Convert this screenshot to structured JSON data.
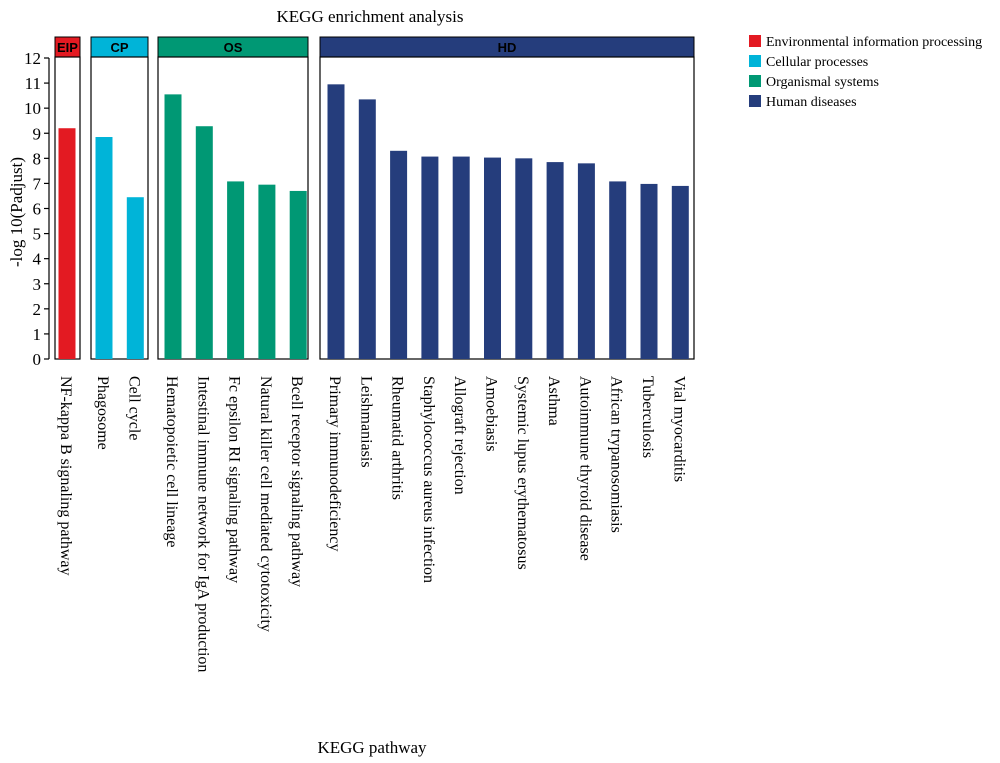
{
  "chart_data": {
    "type": "bar",
    "title": "KEGG enrichment analysis",
    "xlabel": "KEGG pathway",
    "ylabel": "-log 10(Padjust)",
    "ylim": [
      0,
      12
    ],
    "yticks": [
      0,
      1,
      2,
      3,
      4,
      5,
      6,
      7,
      8,
      9,
      10,
      11,
      12
    ],
    "grid": false,
    "legend_position": "top-right",
    "groups": [
      {
        "abbr": "EIP",
        "name": "Environmental information processing",
        "color": "#e31a22",
        "categories": [
          "NF-kappa B signaling pathway"
        ],
        "values": [
          9.2
        ]
      },
      {
        "abbr": "CP",
        "name": "Cellular processes",
        "color": "#00b4d8",
        "categories": [
          "Phagosome",
          "Cell cycle"
        ],
        "values": [
          8.85,
          6.45
        ]
      },
      {
        "abbr": "OS",
        "name": "Organismal systems",
        "color": "#009874",
        "categories": [
          "Hematopoietic cell lineage",
          "Intestinal immune network for IgA production",
          "Fc epsilon RI signaling pathway",
          "Natural killer cell mediated cytotoxicity",
          "Bcell receptor signaling pathway"
        ],
        "values": [
          10.55,
          9.28,
          7.08,
          6.95,
          6.7
        ]
      },
      {
        "abbr": "HD",
        "name": "Human diseases",
        "color": "#253d7c",
        "categories": [
          "Primary immunodeficiency",
          "Leishmaniasis",
          "Rheumatid arthritis",
          "Staphylococcus aureus infection",
          "Allograft rejection",
          "Amoebiasis",
          "Systemic lupus erythematosus",
          "Asthma",
          "Autoimmune thyroid disease",
          "African trypanosomiasis",
          "Tuberculosis",
          "Vial myocarditis"
        ],
        "values": [
          10.95,
          10.35,
          8.3,
          8.07,
          8.07,
          8.03,
          8.0,
          7.85,
          7.8,
          7.08,
          6.98,
          6.9
        ]
      }
    ]
  }
}
